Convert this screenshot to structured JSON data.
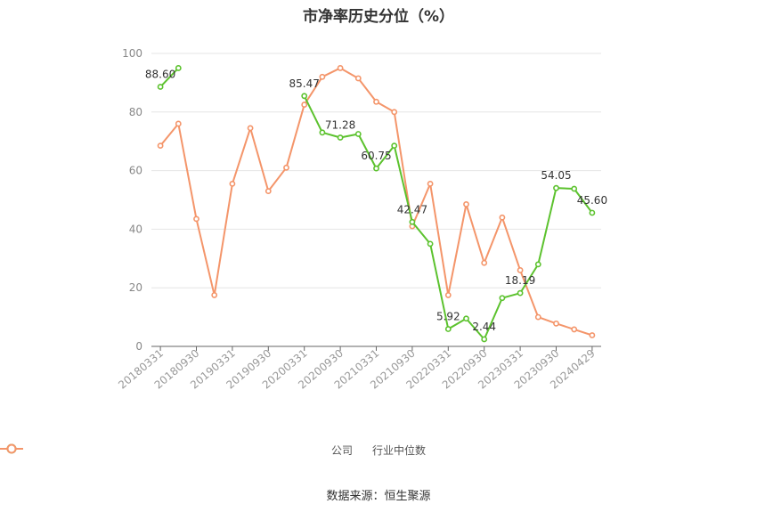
{
  "chart_data": {
    "type": "line",
    "title": "市净率历史分位（%）",
    "ylim": [
      0,
      100
    ],
    "yticks": [
      0,
      20,
      40,
      60,
      80,
      100
    ],
    "x": [
      "20180331",
      "20180630",
      "20180930",
      "20181231",
      "20190331",
      "20190630",
      "20190930",
      "20191231",
      "20200331",
      "20200630",
      "20200930",
      "20201231",
      "20210331",
      "20210630",
      "20210930",
      "20211231",
      "20220331",
      "20220630",
      "20220930",
      "20221231",
      "20230331",
      "20230630",
      "20230930",
      "20231231",
      "20240429"
    ],
    "xtick_labels": [
      "20180331",
      "20180930",
      "20190331",
      "20190930",
      "20200331",
      "20200930",
      "20210331",
      "20210930",
      "20220331",
      "20220930",
      "20230331",
      "20230930",
      "20240429"
    ],
    "xtick_index": [
      0,
      2,
      4,
      6,
      8,
      10,
      12,
      14,
      16,
      18,
      20,
      22,
      24
    ],
    "grid": true,
    "legend_position": "bottom",
    "series": [
      {
        "name": "公司",
        "color": "#5cc22e",
        "values": [
          88.6,
          95.0,
          null,
          null,
          null,
          null,
          null,
          null,
          85.47,
          73.0,
          71.28,
          72.5,
          60.75,
          68.5,
          42.47,
          35.0,
          5.92,
          9.5,
          2.44,
          16.5,
          18.19,
          28.0,
          54.05,
          53.8,
          45.6
        ],
        "data_labels": [
          {
            "index": 0,
            "text": "88.60"
          },
          {
            "index": 8,
            "text": "85.47"
          },
          {
            "index": 10,
            "text": "71.28"
          },
          {
            "index": 12,
            "text": "60.75"
          },
          {
            "index": 14,
            "text": "42.47"
          },
          {
            "index": 16,
            "text": "5.92"
          },
          {
            "index": 18,
            "text": "2.44"
          },
          {
            "index": 20,
            "text": "18.19"
          },
          {
            "index": 22,
            "text": "54.05"
          },
          {
            "index": 24,
            "text": "45.60"
          }
        ]
      },
      {
        "name": "行业中位数",
        "color": "#f4956a",
        "values": [
          68.5,
          76.0,
          43.5,
          17.5,
          55.5,
          74.5,
          53.0,
          61.0,
          82.5,
          92.0,
          95.0,
          91.5,
          83.5,
          80.0,
          41.0,
          55.5,
          17.5,
          48.5,
          28.5,
          44.0,
          26.0,
          10.0,
          7.8,
          5.8,
          3.8
        ]
      }
    ]
  },
  "source": "数据来源：恒生聚源"
}
